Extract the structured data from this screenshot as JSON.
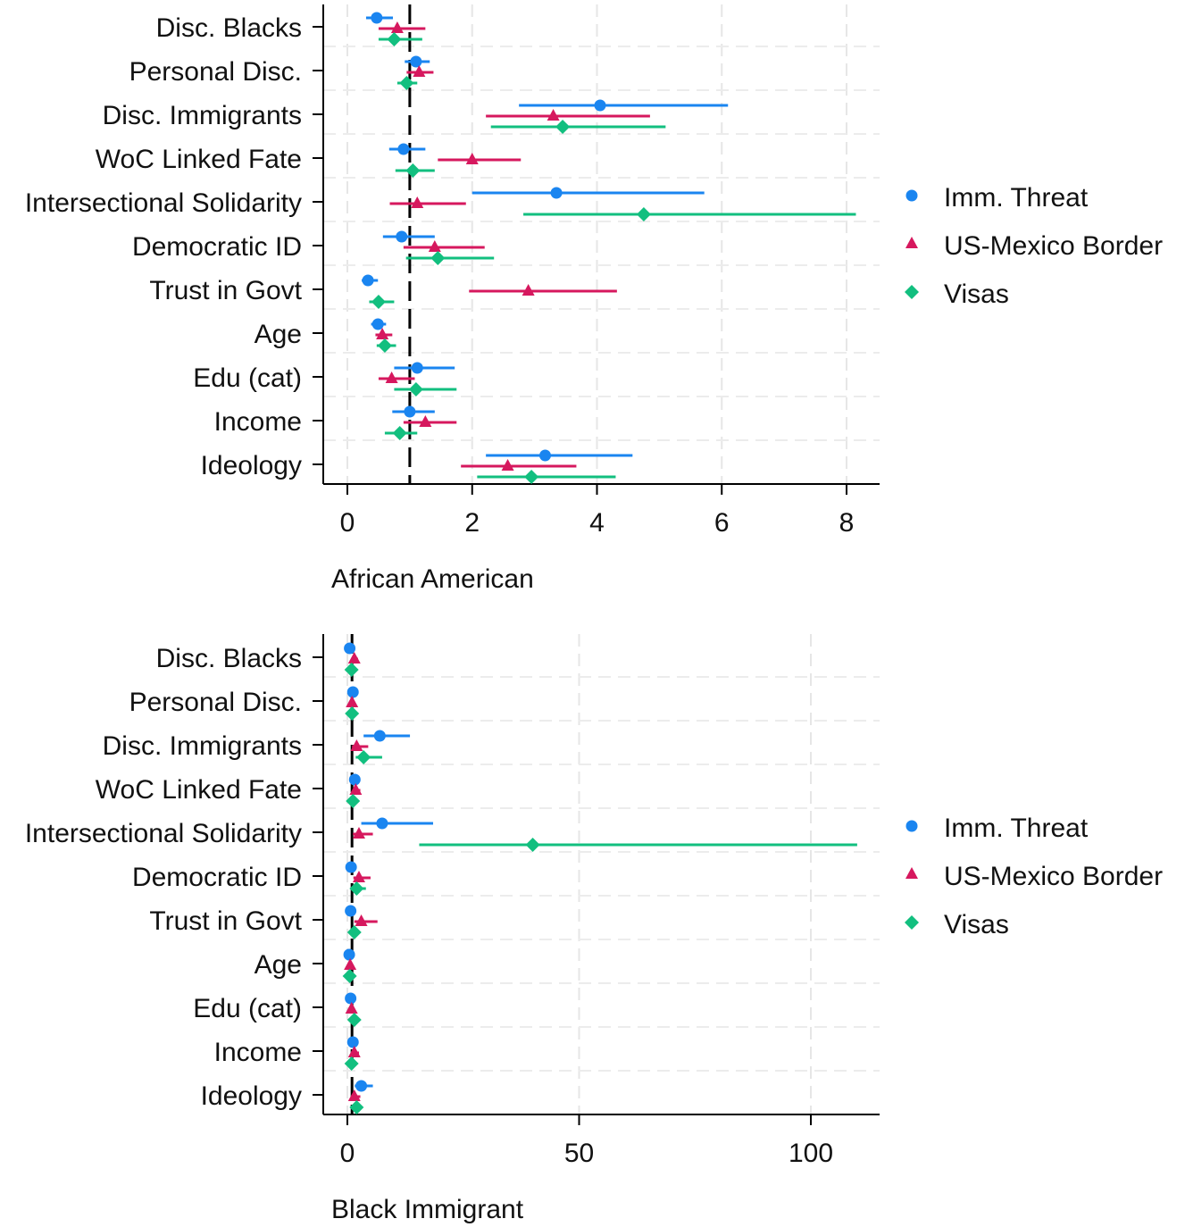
{
  "chart_data": [
    {
      "type": "dot-and-whisker",
      "xlabel": "African American",
      "xlim": [
        -0.45,
        8.5
      ],
      "xticks": [
        0,
        2,
        4,
        6,
        8
      ],
      "reference_line": 1,
      "grid": true,
      "legend_position": "right",
      "categories": [
        "Disc. Blacks",
        "Personal Disc.",
        "Disc. Immigrants",
        "WoC Linked Fate",
        "Intersectional Solidarity",
        "Democratic ID",
        "Trust in Govt",
        "Age",
        "Edu (cat)",
        "Income",
        "Ideology"
      ],
      "series": [
        {
          "name": "Imm. Threat",
          "marker": "circle",
          "color": "#1a85f0",
          "values": [
            0.47,
            1.1,
            4.05,
            0.9,
            3.35,
            0.87,
            0.33,
            0.49,
            1.12,
            1.0,
            3.17
          ],
          "lower": [
            0.3,
            0.92,
            2.75,
            0.67,
            2.0,
            0.57,
            0.23,
            0.38,
            0.75,
            0.72,
            2.22
          ],
          "upper": [
            0.73,
            1.32,
            6.1,
            1.25,
            5.72,
            1.4,
            0.49,
            0.62,
            1.72,
            1.4,
            4.57
          ]
        },
        {
          "name": "US-Mexico Border",
          "marker": "triangle",
          "color": "#d6185e",
          "values": [
            0.8,
            1.15,
            3.3,
            2.0,
            1.12,
            1.4,
            2.9,
            0.56,
            0.71,
            1.25,
            2.57
          ],
          "lower": [
            0.5,
            0.95,
            2.22,
            1.45,
            0.68,
            0.9,
            1.95,
            0.45,
            0.5,
            0.9,
            1.82
          ],
          "upper": [
            1.25,
            1.38,
            4.85,
            2.78,
            1.9,
            2.2,
            4.32,
            0.72,
            1.08,
            1.75,
            3.67
          ]
        },
        {
          "name": "Visas",
          "marker": "diamond",
          "color": "#12bf7f",
          "values": [
            0.75,
            0.95,
            3.45,
            1.05,
            4.75,
            1.45,
            0.5,
            0.6,
            1.1,
            0.84,
            2.95
          ],
          "lower": [
            0.5,
            0.8,
            2.3,
            0.77,
            2.82,
            0.94,
            0.35,
            0.47,
            0.75,
            0.6,
            2.08
          ],
          "upper": [
            1.2,
            1.12,
            5.1,
            1.4,
            8.15,
            2.35,
            0.75,
            0.78,
            1.75,
            1.12,
            4.3
          ]
        }
      ]
    },
    {
      "type": "dot-and-whisker",
      "xlabel": "Black Immigrant",
      "xlim": [
        -5.5,
        115
      ],
      "xticks": [
        0,
        50,
        100
      ],
      "reference_line": 1,
      "grid": true,
      "legend_position": "right",
      "categories": [
        "Disc. Blacks",
        "Personal Disc.",
        "Disc. Immigrants",
        "WoC Linked Fate",
        "Intersectional Solidarity",
        "Democratic ID",
        "Trust in Govt",
        "Age",
        "Edu (cat)",
        "Income",
        "Ideology"
      ],
      "series": [
        {
          "name": "Imm. Threat",
          "marker": "circle",
          "color": "#1a85f0",
          "values": [
            0.5,
            1.2,
            7.0,
            1.6,
            7.5,
            0.8,
            0.7,
            0.4,
            0.7,
            1.2,
            3.0
          ],
          "lower": [
            0.3,
            0.8,
            3.5,
            1.0,
            3.0,
            0.5,
            0.4,
            0.3,
            0.5,
            0.8,
            1.6
          ],
          "upper": [
            0.9,
            1.8,
            13.5,
            2.3,
            18.5,
            1.2,
            1.1,
            0.6,
            1.0,
            1.6,
            5.5
          ]
        },
        {
          "name": "US-Mexico Border",
          "marker": "triangle",
          "color": "#d6185e",
          "values": [
            1.5,
            1.0,
            2.0,
            1.8,
            2.5,
            2.5,
            3.0,
            0.6,
            0.9,
            1.5,
            1.5
          ],
          "lower": [
            0.9,
            0.6,
            1.0,
            1.1,
            1.2,
            1.3,
            1.5,
            0.4,
            0.6,
            0.8,
            0.8
          ],
          "upper": [
            2.3,
            1.5,
            4.5,
            2.8,
            5.5,
            5.0,
            6.5,
            0.9,
            1.4,
            2.5,
            2.8
          ]
        },
        {
          "name": "Visas",
          "marker": "diamond",
          "color": "#12bf7f",
          "values": [
            0.9,
            1.0,
            3.5,
            1.2,
            40.0,
            2.0,
            1.5,
            0.5,
            1.5,
            0.9,
            2.0
          ],
          "lower": [
            0.5,
            0.6,
            1.8,
            0.7,
            15.5,
            1.0,
            0.9,
            0.3,
            0.9,
            0.5,
            1.2
          ],
          "upper": [
            1.4,
            1.6,
            7.5,
            2.0,
            110.0,
            4.0,
            2.5,
            0.8,
            2.4,
            1.4,
            3.2
          ]
        }
      ]
    }
  ]
}
